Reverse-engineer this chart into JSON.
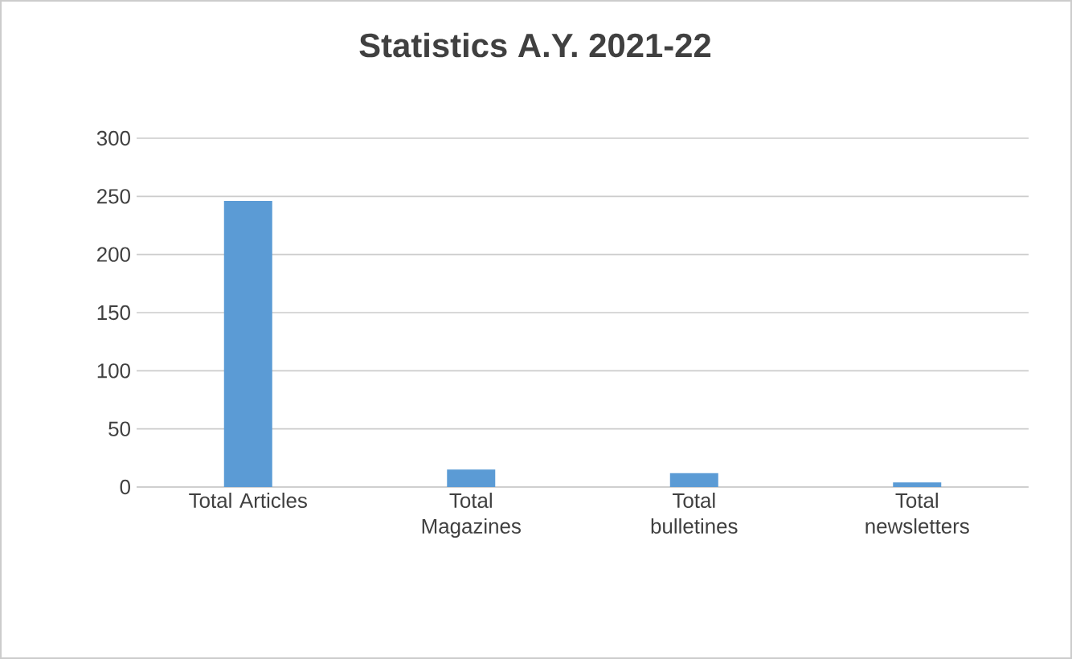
{
  "chart_data": {
    "type": "bar",
    "title": "Statistics A.Y. 2021-22",
    "categories": [
      "Total Articles",
      "Total Magazines",
      "Total bulletines",
      "Total newsletters"
    ],
    "values": [
      246,
      15,
      12,
      4
    ],
    "color": "#5b9bd5",
    "ylim": [
      0,
      300
    ],
    "yticks": [
      0,
      50,
      100,
      150,
      200,
      250,
      300
    ],
    "grid": "y"
  }
}
